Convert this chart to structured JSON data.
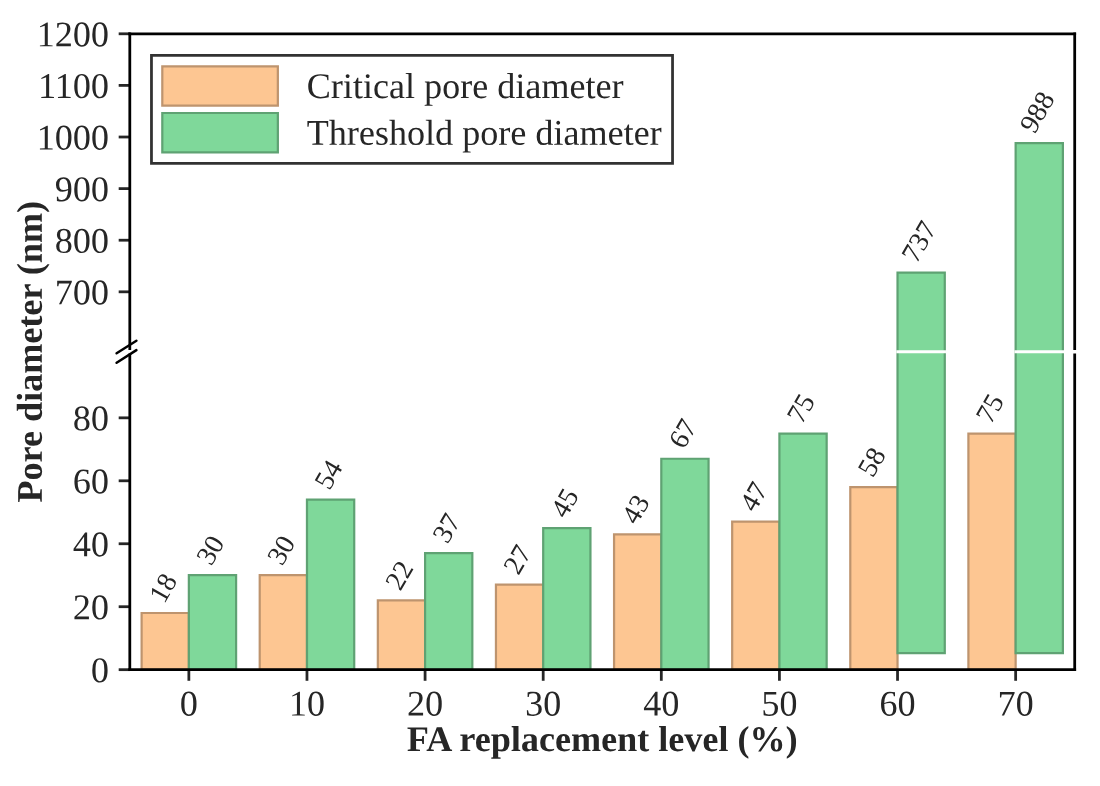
{
  "chart_data": [
    {
      "type": "bar",
      "categories": [
        "0",
        "10",
        "20",
        "30",
        "40",
        "50",
        "60",
        "70"
      ],
      "series": [
        {
          "name": "Critical pore diameter",
          "color": "#fdc692",
          "values": [
            null,
            null,
            null,
            null,
            null,
            null,
            null,
            null
          ]
        },
        {
          "name": "Threshold pore diameter",
          "color": "#7fd89a",
          "values": [
            null,
            null,
            null,
            null,
            null,
            null,
            737,
            988
          ]
        }
      ],
      "ylim": [
        590,
        1200
      ],
      "yticks": [
        700,
        800,
        900,
        1000,
        1100,
        1200
      ],
      "data_labels": true,
      "legend": "top left",
      "tick_labels": "y",
      "grid": false
    },
    {
      "type": "bar",
      "xlabel": "FA replacement level (%)",
      "ylabel": "Pore diameter (nm)",
      "categories": [
        "0",
        "10",
        "20",
        "30",
        "40",
        "50",
        "60",
        "70"
      ],
      "series": [
        {
          "color": "#fdc692",
          "values": [
            18,
            30,
            22,
            27,
            43,
            47,
            58,
            75
          ],
          "value_labels": [
            "18",
            "30",
            "22",
            "27",
            "43",
            "47",
            "58",
            "75"
          ]
        },
        {
          "color": "#7fd89a",
          "values": [
            30,
            54,
            37,
            45,
            67,
            75,
            null,
            null
          ],
          "value_labels": [
            "30",
            "54",
            "37",
            "45",
            "67",
            "75",
            null,
            null
          ]
        }
      ],
      "ylim": [
        0,
        100
      ],
      "yticks": [
        0,
        20,
        40,
        60,
        80
      ],
      "grid": false
    }
  ]
}
